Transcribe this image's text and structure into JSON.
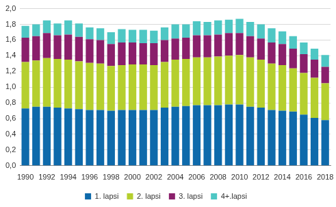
{
  "chart_data": {
    "type": "bar",
    "stacked": true,
    "grid": true,
    "legend": "bottom",
    "categories": [
      "1990",
      null,
      "1992",
      null,
      "1994",
      null,
      "1996",
      null,
      "1998",
      null,
      "2000",
      null,
      "2002",
      null,
      "2004",
      null,
      "2006",
      null,
      "2008",
      null,
      "2010",
      null,
      "2012",
      null,
      "2014",
      null,
      "2016",
      null,
      "2018"
    ],
    "series": [
      {
        "name": "1. lapsi",
        "color": "#0e6aab",
        "values": [
          0.73,
          0.75,
          0.75,
          0.74,
          0.73,
          0.72,
          0.71,
          0.71,
          0.7,
          0.71,
          0.71,
          0.71,
          0.71,
          0.74,
          0.75,
          0.76,
          0.77,
          0.77,
          0.77,
          0.78,
          0.78,
          0.75,
          0.74,
          0.71,
          0.7,
          0.69,
          0.65,
          0.61,
          0.58
        ]
      },
      {
        "name": "2. lapsi",
        "color": "#b5cf2e",
        "values": [
          0.59,
          0.59,
          0.62,
          0.62,
          0.62,
          0.61,
          0.6,
          0.59,
          0.57,
          0.57,
          0.58,
          0.58,
          0.57,
          0.58,
          0.6,
          0.6,
          0.61,
          0.61,
          0.62,
          0.62,
          0.63,
          0.63,
          0.61,
          0.59,
          0.58,
          0.55,
          0.53,
          0.51,
          0.47
        ]
      },
      {
        "name": "3. lapsi",
        "color": "#8a1f6b",
        "values": [
          0.31,
          0.31,
          0.32,
          0.3,
          0.32,
          0.31,
          0.3,
          0.3,
          0.28,
          0.29,
          0.28,
          0.27,
          0.28,
          0.28,
          0.27,
          0.27,
          0.28,
          0.28,
          0.28,
          0.29,
          0.28,
          0.27,
          0.27,
          0.27,
          0.27,
          0.25,
          0.24,
          0.23,
          0.21
        ]
      },
      {
        "name": "4+.lapsi",
        "color": "#4ec7c4",
        "values": [
          0.15,
          0.15,
          0.16,
          0.15,
          0.18,
          0.17,
          0.15,
          0.15,
          0.15,
          0.17,
          0.16,
          0.17,
          0.16,
          0.16,
          0.18,
          0.17,
          0.18,
          0.17,
          0.18,
          0.17,
          0.18,
          0.18,
          0.18,
          0.18,
          0.16,
          0.16,
          0.15,
          0.14,
          0.15
        ]
      }
    ],
    "ylim": [
      0,
      2.0
    ],
    "yticks": [
      {
        "value": 0,
        "label": "0,0"
      },
      {
        "value": 0.2,
        "label": "0,2"
      },
      {
        "value": 0.4,
        "label": "0,4"
      },
      {
        "value": 0.6,
        "label": "0,6"
      },
      {
        "value": 0.8,
        "label": "0,8"
      },
      {
        "value": 1.0,
        "label": "1,0"
      },
      {
        "value": 1.2,
        "label": "1,2"
      },
      {
        "value": 1.4,
        "label": "1,4"
      },
      {
        "value": 1.6,
        "label": "1,6"
      },
      {
        "value": 1.8,
        "label": "1,8"
      },
      {
        "value": 2.0,
        "label": "2,0"
      }
    ]
  }
}
